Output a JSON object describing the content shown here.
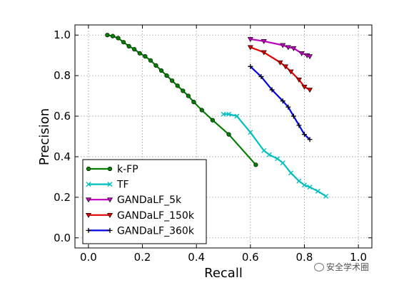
{
  "chart_data": {
    "type": "line",
    "xlabel": "Recall",
    "ylabel": "Precision",
    "xlim": [
      -0.05,
      1.05
    ],
    "ylim": [
      -0.05,
      1.05
    ],
    "xticks": [
      "0.0",
      "0.2",
      "0.4",
      "0.6",
      "0.8",
      "1.0"
    ],
    "yticks": [
      "0.0",
      "0.2",
      "0.4",
      "0.6",
      "0.8",
      "1.0"
    ],
    "grid": true,
    "legend_position": "lower-left",
    "series": [
      {
        "name": "k-FP",
        "color": "#007f00",
        "marker": "circle",
        "x": [
          0.07,
          0.09,
          0.11,
          0.13,
          0.15,
          0.17,
          0.19,
          0.21,
          0.23,
          0.25,
          0.27,
          0.29,
          0.31,
          0.33,
          0.35,
          0.37,
          0.39,
          0.42,
          0.46,
          0.52,
          0.62
        ],
        "y": [
          1.0,
          0.995,
          0.985,
          0.965,
          0.945,
          0.93,
          0.91,
          0.895,
          0.875,
          0.85,
          0.825,
          0.8,
          0.775,
          0.75,
          0.725,
          0.7,
          0.67,
          0.63,
          0.58,
          0.51,
          0.36
        ]
      },
      {
        "name": "TF",
        "color": "#00bfbf",
        "marker": "x",
        "x": [
          0.5,
          0.52,
          0.55,
          0.6,
          0.65,
          0.67,
          0.7,
          0.72,
          0.75,
          0.78,
          0.8,
          0.82,
          0.85,
          0.88
        ],
        "y": [
          0.61,
          0.61,
          0.6,
          0.52,
          0.43,
          0.41,
          0.39,
          0.37,
          0.32,
          0.28,
          0.26,
          0.25,
          0.23,
          0.205
        ]
      },
      {
        "name": "GANDaLF_5k",
        "color": "#bf00bf",
        "marker": "triangle-down",
        "x": [
          0.6,
          0.65,
          0.72,
          0.74,
          0.76,
          0.79,
          0.81,
          0.82
        ],
        "y": [
          0.98,
          0.97,
          0.95,
          0.94,
          0.935,
          0.91,
          0.9,
          0.895
        ]
      },
      {
        "name": "GANDaLF_150k",
        "color": "#e00000",
        "marker": "triangle-down",
        "x": [
          0.6,
          0.65,
          0.71,
          0.73,
          0.75,
          0.78,
          0.8,
          0.82
        ],
        "y": [
          0.94,
          0.915,
          0.865,
          0.845,
          0.82,
          0.78,
          0.745,
          0.73
        ]
      },
      {
        "name": "GANDaLF_360k",
        "color": "#0000e0",
        "marker": "plus",
        "x": [
          0.6,
          0.64,
          0.68,
          0.72,
          0.74,
          0.76,
          0.78,
          0.8,
          0.82
        ],
        "y": [
          0.845,
          0.795,
          0.73,
          0.675,
          0.645,
          0.6,
          0.555,
          0.51,
          0.485
        ]
      }
    ]
  },
  "watermark": {
    "text": "安全学术圈",
    "icon": "wechat-icon"
  }
}
